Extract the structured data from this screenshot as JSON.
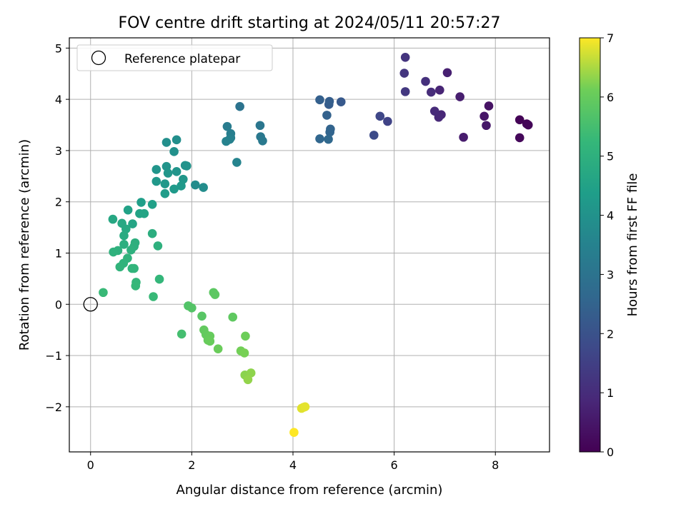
{
  "chart_data": {
    "type": "scatter",
    "title": "FOV centre drift starting at 2024/05/11 20:57:27",
    "xlabel": "Angular distance from reference (arcmin)",
    "ylabel": "Rotation from reference (arcmin)",
    "xlim": [
      -0.42,
      9.07
    ],
    "ylim": [
      -2.88,
      5.2
    ],
    "xticks": [
      0,
      2,
      4,
      6,
      8
    ],
    "yticks": [
      -2,
      -1,
      0,
      1,
      2,
      3,
      4,
      5
    ],
    "grid": true,
    "legend": {
      "location": "top-left",
      "entries": [
        "Reference platepar"
      ]
    },
    "reference_point": {
      "x": 0,
      "y": 0
    },
    "colorbar": {
      "label": "Hours from first FF file",
      "colormap": "viridis",
      "min": 0,
      "max": 7,
      "ticks": [
        0,
        1,
        2,
        3,
        4,
        5,
        6,
        7
      ]
    },
    "points": [
      {
        "x": 8.48,
        "y": 3.6,
        "c": 0.05
      },
      {
        "x": 8.62,
        "y": 3.52,
        "c": 0.08
      },
      {
        "x": 8.65,
        "y": 3.5,
        "c": 0.1
      },
      {
        "x": 8.48,
        "y": 3.25,
        "c": 0.15
      },
      {
        "x": 7.87,
        "y": 3.87,
        "c": 0.4
      },
      {
        "x": 7.78,
        "y": 3.67,
        "c": 0.45
      },
      {
        "x": 7.82,
        "y": 3.49,
        "c": 0.5
      },
      {
        "x": 7.37,
        "y": 3.26,
        "c": 0.6
      },
      {
        "x": 7.3,
        "y": 4.05,
        "c": 0.65
      },
      {
        "x": 7.05,
        "y": 4.52,
        "c": 0.7
      },
      {
        "x": 6.9,
        "y": 4.18,
        "c": 0.8
      },
      {
        "x": 6.93,
        "y": 3.7,
        "c": 0.85
      },
      {
        "x": 6.88,
        "y": 3.65,
        "c": 0.9
      },
      {
        "x": 6.8,
        "y": 3.77,
        "c": 0.95
      },
      {
        "x": 6.73,
        "y": 4.14,
        "c": 1.0
      },
      {
        "x": 6.62,
        "y": 4.35,
        "c": 1.1
      },
      {
        "x": 6.22,
        "y": 4.82,
        "c": 1.2
      },
      {
        "x": 6.2,
        "y": 4.51,
        "c": 1.25
      },
      {
        "x": 6.22,
        "y": 4.15,
        "c": 1.3
      },
      {
        "x": 5.87,
        "y": 3.57,
        "c": 1.6
      },
      {
        "x": 5.72,
        "y": 3.67,
        "c": 1.7
      },
      {
        "x": 5.6,
        "y": 3.3,
        "c": 1.8
      },
      {
        "x": 4.95,
        "y": 3.95,
        "c": 2.2
      },
      {
        "x": 4.71,
        "y": 3.9,
        "c": 2.3
      },
      {
        "x": 4.72,
        "y": 3.96,
        "c": 2.35
      },
      {
        "x": 4.53,
        "y": 3.99,
        "c": 2.4
      },
      {
        "x": 4.67,
        "y": 3.69,
        "c": 2.45
      },
      {
        "x": 4.74,
        "y": 3.42,
        "c": 2.5
      },
      {
        "x": 4.73,
        "y": 3.36,
        "c": 2.55
      },
      {
        "x": 4.53,
        "y": 3.23,
        "c": 2.6
      },
      {
        "x": 4.7,
        "y": 3.22,
        "c": 2.65
      },
      {
        "x": 2.95,
        "y": 3.86,
        "c": 3.0
      },
      {
        "x": 3.35,
        "y": 3.49,
        "c": 3.1
      },
      {
        "x": 3.36,
        "y": 3.27,
        "c": 3.15
      },
      {
        "x": 3.4,
        "y": 3.19,
        "c": 3.2
      },
      {
        "x": 2.7,
        "y": 3.47,
        "c": 3.3
      },
      {
        "x": 2.77,
        "y": 3.33,
        "c": 3.35
      },
      {
        "x": 2.77,
        "y": 3.25,
        "c": 3.4
      },
      {
        "x": 2.75,
        "y": 3.22,
        "c": 3.45
      },
      {
        "x": 2.68,
        "y": 3.18,
        "c": 3.5
      },
      {
        "x": 2.89,
        "y": 2.77,
        "c": 3.55
      },
      {
        "x": 2.07,
        "y": 2.33,
        "c": 3.8
      },
      {
        "x": 2.23,
        "y": 2.28,
        "c": 3.85
      },
      {
        "x": 1.7,
        "y": 3.21,
        "c": 3.9
      },
      {
        "x": 1.5,
        "y": 3.16,
        "c": 3.92
      },
      {
        "x": 1.65,
        "y": 2.98,
        "c": 3.95
      },
      {
        "x": 1.87,
        "y": 2.71,
        "c": 4.0
      },
      {
        "x": 1.9,
        "y": 2.7,
        "c": 4.02
      },
      {
        "x": 1.5,
        "y": 2.69,
        "c": 4.05
      },
      {
        "x": 1.3,
        "y": 2.63,
        "c": 4.08
      },
      {
        "x": 1.7,
        "y": 2.59,
        "c": 4.1
      },
      {
        "x": 1.53,
        "y": 2.56,
        "c": 4.12
      },
      {
        "x": 1.83,
        "y": 2.44,
        "c": 4.15
      },
      {
        "x": 1.3,
        "y": 2.4,
        "c": 4.18
      },
      {
        "x": 1.47,
        "y": 2.35,
        "c": 4.2
      },
      {
        "x": 1.79,
        "y": 2.31,
        "c": 4.22
      },
      {
        "x": 1.65,
        "y": 2.25,
        "c": 4.25
      },
      {
        "x": 1.47,
        "y": 2.16,
        "c": 4.3
      },
      {
        "x": 1.0,
        "y": 1.99,
        "c": 4.4
      },
      {
        "x": 1.22,
        "y": 1.95,
        "c": 4.45
      },
      {
        "x": 0.74,
        "y": 1.84,
        "c": 4.5
      },
      {
        "x": 0.97,
        "y": 1.77,
        "c": 4.55
      },
      {
        "x": 1.06,
        "y": 1.77,
        "c": 4.58
      },
      {
        "x": 0.83,
        "y": 1.57,
        "c": 4.62
      },
      {
        "x": 0.44,
        "y": 1.66,
        "c": 4.7
      },
      {
        "x": 0.62,
        "y": 1.58,
        "c": 4.72
      },
      {
        "x": 0.7,
        "y": 1.47,
        "c": 4.75
      },
      {
        "x": 0.66,
        "y": 1.34,
        "c": 4.8
      },
      {
        "x": 1.22,
        "y": 1.38,
        "c": 4.9
      },
      {
        "x": 0.66,
        "y": 1.17,
        "c": 4.92
      },
      {
        "x": 0.88,
        "y": 1.2,
        "c": 4.95
      },
      {
        "x": 0.86,
        "y": 1.13,
        "c": 4.97
      },
      {
        "x": 1.33,
        "y": 1.14,
        "c": 5.0
      },
      {
        "x": 0.8,
        "y": 1.06,
        "c": 5.0
      },
      {
        "x": 0.54,
        "y": 1.05,
        "c": 5.02
      },
      {
        "x": 0.45,
        "y": 1.02,
        "c": 5.05
      },
      {
        "x": 0.73,
        "y": 0.9,
        "c": 5.08
      },
      {
        "x": 0.65,
        "y": 0.8,
        "c": 5.1
      },
      {
        "x": 0.58,
        "y": 0.73,
        "c": 5.12
      },
      {
        "x": 0.82,
        "y": 0.7,
        "c": 5.14
      },
      {
        "x": 0.86,
        "y": 0.7,
        "c": 5.15
      },
      {
        "x": 1.36,
        "y": 0.49,
        "c": 5.2
      },
      {
        "x": 0.9,
        "y": 0.43,
        "c": 5.22
      },
      {
        "x": 0.89,
        "y": 0.36,
        "c": 5.25
      },
      {
        "x": 0.25,
        "y": 0.23,
        "c": 5.3
      },
      {
        "x": 1.24,
        "y": 0.15,
        "c": 5.3
      },
      {
        "x": 1.8,
        "y": -0.58,
        "c": 5.5
      },
      {
        "x": 1.93,
        "y": -0.03,
        "c": 5.7
      },
      {
        "x": 2.0,
        "y": -0.07,
        "c": 5.72
      },
      {
        "x": 2.2,
        "y": -0.23,
        "c": 5.78
      },
      {
        "x": 2.43,
        "y": 0.23,
        "c": 5.85
      },
      {
        "x": 2.46,
        "y": 0.19,
        "c": 5.87
      },
      {
        "x": 2.81,
        "y": -0.25,
        "c": 5.9
      },
      {
        "x": 2.24,
        "y": -0.5,
        "c": 5.95
      },
      {
        "x": 2.28,
        "y": -0.59,
        "c": 5.97
      },
      {
        "x": 2.36,
        "y": -0.62,
        "c": 6.0
      },
      {
        "x": 2.32,
        "y": -0.7,
        "c": 6.02
      },
      {
        "x": 2.36,
        "y": -0.72,
        "c": 6.04
      },
      {
        "x": 2.52,
        "y": -0.87,
        "c": 6.06
      },
      {
        "x": 3.06,
        "y": -0.62,
        "c": 6.1
      },
      {
        "x": 2.97,
        "y": -0.91,
        "c": 6.15
      },
      {
        "x": 3.04,
        "y": -0.95,
        "c": 6.18
      },
      {
        "x": 3.05,
        "y": -1.38,
        "c": 6.3
      },
      {
        "x": 3.17,
        "y": -1.34,
        "c": 6.32
      },
      {
        "x": 3.11,
        "y": -1.47,
        "c": 6.35
      },
      {
        "x": 4.21,
        "y": -2.01,
        "c": 6.8
      },
      {
        "x": 4.17,
        "y": -2.03,
        "c": 6.82
      },
      {
        "x": 4.24,
        "y": -2.0,
        "c": 6.85
      },
      {
        "x": 4.02,
        "y": -2.5,
        "c": 7.0
      }
    ]
  }
}
